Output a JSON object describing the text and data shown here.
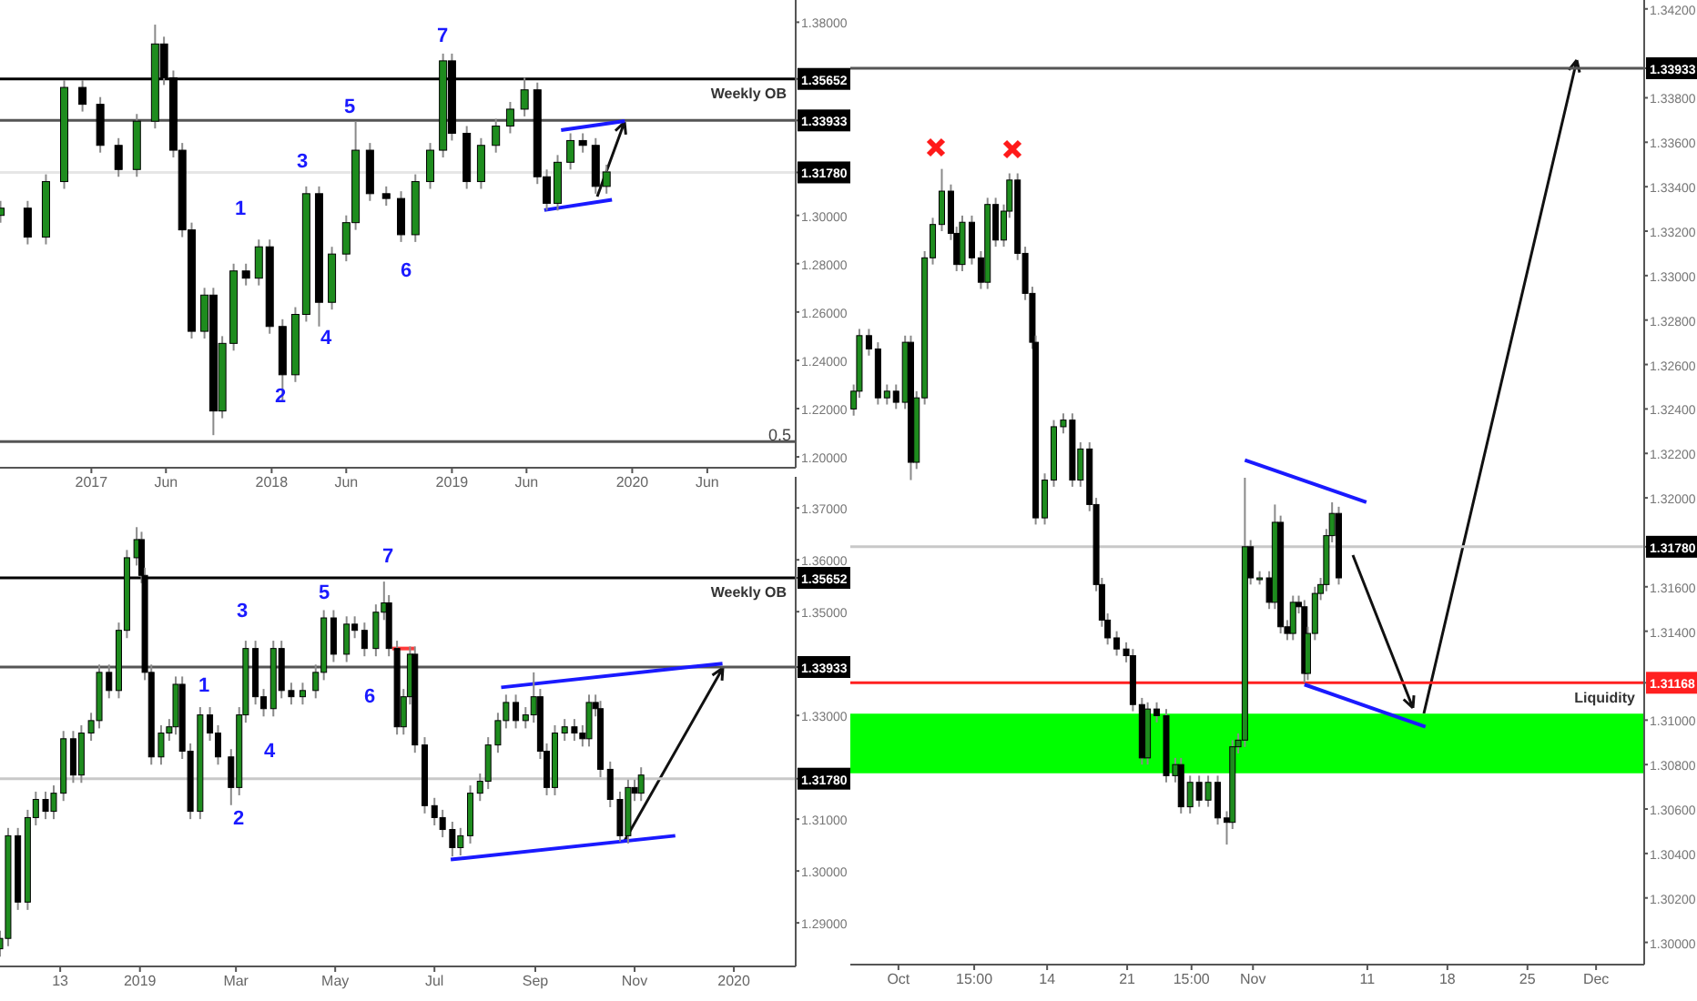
{
  "chart_data": [
    {
      "type": "candlestick",
      "x": [
        "2016-07-01",
        "2016-08-25",
        "2016-10-01",
        "2016-11-07",
        "2016-12-14",
        "2017-01-19",
        "2017-02-25",
        "2017-04-03",
        "2017-05-10",
        "2017-05-28",
        "2017-06-16",
        "2017-07-04",
        "2017-07-23",
        "2017-08-18",
        "2017-09-05",
        "2017-09-23",
        "2017-10-16",
        "2017-11-10",
        "2017-12-06",
        "2017-12-28",
        "2018-01-23",
        "2018-02-18",
        "2018-03-12",
        "2018-04-07",
        "2018-05-03",
        "2018-06-01",
        "2018-06-20",
        "2018-07-19",
        "2018-08-21",
        "2018-09-20",
        "2018-10-19",
        "2018-11-18",
        "2018-12-14",
        "2019-01-01",
        "2019-01-31",
        "2019-03-01",
        "2019-03-31",
        "2019-04-29",
        "2019-05-28",
        "2019-06-23",
        "2019-07-12",
        "2019-08-03",
        "2019-08-29",
        "2019-09-23",
        "2019-10-19",
        "2019-11-10"
      ],
      "ohlc": [
        [
          1.3,
          1.306,
          1.297,
          1.303
        ],
        [
          1.303,
          1.306,
          1.288,
          1.291
        ],
        [
          1.291,
          1.317,
          1.288,
          1.314
        ],
        [
          1.314,
          1.356,
          1.311,
          1.353
        ],
        [
          1.353,
          1.356,
          1.343,
          1.346
        ],
        [
          1.346,
          1.349,
          1.326,
          1.329
        ],
        [
          1.329,
          1.332,
          1.316,
          1.319
        ],
        [
          1.319,
          1.342,
          1.316,
          1.339
        ],
        [
          1.339,
          1.379,
          1.336,
          1.371
        ],
        [
          1.371,
          1.374,
          1.354,
          1.357
        ],
        [
          1.357,
          1.36,
          1.324,
          1.327
        ],
        [
          1.327,
          1.33,
          1.291,
          1.294
        ],
        [
          1.294,
          1.297,
          1.249,
          1.252
        ],
        [
          1.252,
          1.27,
          1.249,
          1.267
        ],
        [
          1.267,
          1.27,
          1.209,
          1.219
        ],
        [
          1.219,
          1.25,
          1.216,
          1.247
        ],
        [
          1.247,
          1.28,
          1.244,
          1.277
        ],
        [
          1.277,
          1.28,
          1.271,
          1.274
        ],
        [
          1.274,
          1.29,
          1.271,
          1.287
        ],
        [
          1.287,
          1.29,
          1.251,
          1.254
        ],
        [
          1.254,
          1.257,
          1.223,
          1.234
        ],
        [
          1.234,
          1.262,
          1.231,
          1.259
        ],
        [
          1.259,
          1.312,
          1.256,
          1.309
        ],
        [
          1.309,
          1.312,
          1.254,
          1.264
        ],
        [
          1.264,
          1.287,
          1.261,
          1.284
        ],
        [
          1.284,
          1.3,
          1.281,
          1.297
        ],
        [
          1.297,
          1.339,
          1.294,
          1.327
        ],
        [
          1.327,
          1.33,
          1.306,
          1.309
        ],
        [
          1.309,
          1.312,
          1.304,
          1.307
        ],
        [
          1.307,
          1.31,
          1.289,
          1.292
        ],
        [
          1.292,
          1.317,
          1.289,
          1.314
        ],
        [
          1.314,
          1.33,
          1.311,
          1.327
        ],
        [
          1.327,
          1.367,
          1.324,
          1.364
        ],
        [
          1.364,
          1.367,
          1.331,
          1.334
        ],
        [
          1.334,
          1.337,
          1.311,
          1.314
        ],
        [
          1.314,
          1.332,
          1.311,
          1.329
        ],
        [
          1.329,
          1.34,
          1.326,
          1.337
        ],
        [
          1.337,
          1.347,
          1.334,
          1.344
        ],
        [
          1.344,
          1.357,
          1.341,
          1.352
        ],
        [
          1.352,
          1.355,
          1.313,
          1.316
        ],
        [
          1.316,
          1.319,
          1.302,
          1.305
        ],
        [
          1.305,
          1.325,
          1.302,
          1.322
        ],
        [
          1.322,
          1.334,
          1.319,
          1.331
        ],
        [
          1.331,
          1.334,
          1.326,
          1.329
        ],
        [
          1.329,
          1.332,
          1.309,
          1.312
        ],
        [
          1.312,
          1.321,
          1.309,
          1.318
        ]
      ],
      "series": [
        {
          "type": "line",
          "color": "#1a1aff",
          "x": [
            "2019-08-10",
            "2019-12-17"
          ],
          "values": [
            1.3353,
            1.3391
          ]
        },
        {
          "type": "line",
          "color": "#1a1aff",
          "x": [
            "2019-07-07",
            "2019-11-21"
          ],
          "values": [
            1.3022,
            1.3065
          ]
        }
      ],
      "xlim": [
        "2016-06-30",
        "2020-11-27"
      ],
      "xticks": [
        {
          "value": "2017-01-01",
          "label": "2017"
        },
        {
          "value": "2017-06-01",
          "label": "Jun"
        },
        {
          "value": "2018-01-01",
          "label": "2018"
        },
        {
          "value": "2018-06-01",
          "label": "Jun"
        },
        {
          "value": "2019-01-01",
          "label": "2019"
        },
        {
          "value": "2019-06-01",
          "label": "Jun"
        },
        {
          "value": "2020-01-01",
          "label": "2020"
        },
        {
          "value": "2020-06-01",
          "label": "Jun"
        }
      ],
      "ylim": [
        1.1955,
        1.3892
      ],
      "yticks": [
        {
          "value": 1.38,
          "label": "1.38000"
        },
        {
          "value": 1.35652,
          "label": "1.35652"
        },
        {
          "value": 1.33933,
          "label": "1.33933"
        },
        {
          "value": 1.3178,
          "label": "1.31780"
        },
        {
          "value": 1.3,
          "label": "1.30000"
        },
        {
          "value": 1.28,
          "label": "1.28000"
        },
        {
          "value": 1.26,
          "label": "1.26000"
        },
        {
          "value": 1.24,
          "label": "1.24000"
        },
        {
          "value": 1.22,
          "label": "1.22000"
        },
        {
          "value": 1.2,
          "label": "1.20000"
        }
      ],
      "ref_lines": [
        {
          "axis": "y",
          "value": 1.35652,
          "label": "Weekly OB",
          "color": "#000000"
        },
        {
          "axis": "y",
          "value": 1.33933,
          "color": "#555555"
        },
        {
          "axis": "y",
          "value": 1.3178,
          "color": "#e6e6e6"
        },
        {
          "axis": "y",
          "value": 1.2063,
          "color": "#555555"
        }
      ],
      "annotations": [
        "1",
        "2",
        "3",
        "4",
        "5",
        "6",
        "7",
        "0.5"
      ]
    },
    {
      "type": "candlestick",
      "x": [
        "2018-10-07",
        "2018-10-12",
        "2018-10-18",
        "2018-10-24",
        "2018-10-29",
        "2018-11-04",
        "2018-11-09",
        "2018-11-15",
        "2018-11-21",
        "2018-11-26",
        "2018-12-02",
        "2018-12-07",
        "2018-12-13",
        "2018-12-19",
        "2018-12-24",
        "2018-12-30",
        "2019-01-02",
        "2019-01-04",
        "2019-01-08",
        "2019-01-14",
        "2019-01-19",
        "2019-01-23",
        "2019-01-27",
        "2019-02-01",
        "2019-02-07",
        "2019-02-13",
        "2019-02-18",
        "2019-02-26",
        "2019-03-03",
        "2019-03-07",
        "2019-03-13",
        "2019-03-18",
        "2019-03-24",
        "2019-03-29",
        "2019-04-04",
        "2019-04-11",
        "2019-04-19",
        "2019-04-24",
        "2019-04-30",
        "2019-05-08",
        "2019-05-13",
        "2019-05-19",
        "2019-05-26",
        "2019-05-31",
        "2019-06-03",
        "2019-06-08",
        "2019-06-12",
        "2019-06-16",
        "2019-06-19",
        "2019-06-25",
        "2019-07-01",
        "2019-07-06",
        "2019-07-12",
        "2019-07-17",
        "2019-07-23",
        "2019-07-29",
        "2019-08-03",
        "2019-08-09",
        "2019-08-14",
        "2019-08-20",
        "2019-08-26",
        "2019-08-31",
        "2019-09-04",
        "2019-09-08",
        "2019-09-13",
        "2019-09-19",
        "2019-09-25",
        "2019-09-30",
        "2019-10-04",
        "2019-10-08",
        "2019-10-11",
        "2019-10-17",
        "2019-10-23",
        "2019-10-28",
        "2019-11-01",
        "2019-11-05"
      ],
      "ohlc": [
        [
          1.285,
          1.2885,
          1.2835,
          1.287
        ],
        [
          1.287,
          1.3083,
          1.2855,
          1.3068
        ],
        [
          1.3068,
          1.3083,
          1.2925,
          1.294
        ],
        [
          1.294,
          1.3118,
          1.2925,
          1.3103
        ],
        [
          1.3103,
          1.3153,
          1.3088,
          1.3138
        ],
        [
          1.3138,
          1.3153,
          1.31,
          1.3115
        ],
        [
          1.3115,
          1.3165,
          1.31,
          1.315
        ],
        [
          1.315,
          1.327,
          1.3135,
          1.3255
        ],
        [
          1.3255,
          1.327,
          1.317,
          1.3185
        ],
        [
          1.3185,
          1.3281,
          1.317,
          1.3266
        ],
        [
          1.3266,
          1.3305,
          1.3251,
          1.329
        ],
        [
          1.329,
          1.3398,
          1.3275,
          1.3383
        ],
        [
          1.3383,
          1.3398,
          1.3333,
          1.3348
        ],
        [
          1.3348,
          1.3479,
          1.3333,
          1.3464
        ],
        [
          1.3464,
          1.3619,
          1.3449,
          1.3604
        ],
        [
          1.3604,
          1.3663,
          1.3589,
          1.3639
        ],
        [
          1.3639,
          1.3654,
          1.3555,
          1.357
        ],
        [
          1.357,
          1.3585,
          1.3368,
          1.3383
        ],
        [
          1.3383,
          1.3398,
          1.3205,
          1.322
        ],
        [
          1.322,
          1.3281,
          1.3205,
          1.3266
        ],
        [
          1.3266,
          1.3293,
          1.3251,
          1.3278
        ],
        [
          1.3278,
          1.3375,
          1.3263,
          1.336
        ],
        [
          1.336,
          1.3375,
          1.3216,
          1.3231
        ],
        [
          1.3231,
          1.3246,
          1.31,
          1.3115
        ],
        [
          1.3115,
          1.3316,
          1.31,
          1.3301
        ],
        [
          1.3301,
          1.3316,
          1.3251,
          1.3266
        ],
        [
          1.3266,
          1.3281,
          1.3205,
          1.322
        ],
        [
          1.322,
          1.3235,
          1.3127,
          1.3161
        ],
        [
          1.3161,
          1.3316,
          1.3146,
          1.3301
        ],
        [
          1.3301,
          1.3444,
          1.3286,
          1.3429
        ],
        [
          1.3429,
          1.3444,
          1.3321,
          1.3336
        ],
        [
          1.3336,
          1.3351,
          1.3298,
          1.3313
        ],
        [
          1.3313,
          1.3444,
          1.3298,
          1.3429
        ],
        [
          1.3429,
          1.3444,
          1.3333,
          1.3348
        ],
        [
          1.3348,
          1.3363,
          1.3321,
          1.3336
        ],
        [
          1.3336,
          1.3363,
          1.3321,
          1.3348
        ],
        [
          1.3348,
          1.3398,
          1.3333,
          1.3383
        ],
        [
          1.3383,
          1.3503,
          1.3368,
          1.3488
        ],
        [
          1.3488,
          1.3503,
          1.3403,
          1.3418
        ],
        [
          1.3418,
          1.3491,
          1.3403,
          1.3476
        ],
        [
          1.3476,
          1.3491,
          1.3449,
          1.3464
        ],
        [
          1.3464,
          1.3479,
          1.3414,
          1.3429
        ],
        [
          1.3429,
          1.3514,
          1.3414,
          1.3499
        ],
        [
          1.3499,
          1.3558,
          1.3484,
          1.3517
        ],
        [
          1.3517,
          1.3532,
          1.3414,
          1.3429
        ],
        [
          1.3429,
          1.3444,
          1.3263,
          1.3278
        ],
        [
          1.3278,
          1.3351,
          1.3263,
          1.3336
        ],
        [
          1.3336,
          1.3433,
          1.3321,
          1.3418
        ],
        [
          1.3418,
          1.3433,
          1.3228,
          1.3243
        ],
        [
          1.3243,
          1.3258,
          1.3111,
          1.3126
        ],
        [
          1.3126,
          1.3141,
          1.3088,
          1.3103
        ],
        [
          1.3103,
          1.3118,
          1.3065,
          1.308
        ],
        [
          1.308,
          1.3095,
          1.3028,
          1.3045
        ],
        [
          1.3045,
          1.3083,
          1.303,
          1.3068
        ],
        [
          1.3068,
          1.3165,
          1.3053,
          1.315
        ],
        [
          1.315,
          1.3188,
          1.3135,
          1.3173
        ],
        [
          1.3173,
          1.3258,
          1.3158,
          1.3243
        ],
        [
          1.3243,
          1.3305,
          1.3228,
          1.329
        ],
        [
          1.329,
          1.334,
          1.3275,
          1.3325
        ],
        [
          1.3325,
          1.334,
          1.3275,
          1.329
        ],
        [
          1.329,
          1.3316,
          1.3275,
          1.3301
        ],
        [
          1.3301,
          1.3383,
          1.3286,
          1.3336
        ],
        [
          1.3336,
          1.3351,
          1.3216,
          1.3231
        ],
        [
          1.3231,
          1.3246,
          1.3146,
          1.3161
        ],
        [
          1.3161,
          1.3281,
          1.3146,
          1.3266
        ],
        [
          1.3266,
          1.3293,
          1.3251,
          1.3278
        ],
        [
          1.3278,
          1.3293,
          1.3251,
          1.3266
        ],
        [
          1.3266,
          1.3281,
          1.324,
          1.3255
        ],
        [
          1.3255,
          1.334,
          1.324,
          1.3325
        ],
        [
          1.3325,
          1.334,
          1.3298,
          1.3313
        ],
        [
          1.3313,
          1.3328,
          1.3181,
          1.3196
        ],
        [
          1.3196,
          1.3211,
          1.3123,
          1.3138
        ],
        [
          1.3138,
          1.3153,
          1.3057,
          1.3068
        ],
        [
          1.3068,
          1.3176,
          1.3053,
          1.3161
        ],
        [
          1.3161,
          1.3176,
          1.3135,
          1.315
        ],
        [
          1.315,
          1.32,
          1.3135,
          1.3185
        ]
      ],
      "series": [
        {
          "type": "line",
          "color": "#1a1aff",
          "x": [
            "2019-08-11",
            "2019-12-25"
          ],
          "values": [
            1.3354,
            1.34
          ]
        },
        {
          "type": "line",
          "color": "#1a1aff",
          "x": [
            "2019-07-11",
            "2019-11-26"
          ],
          "values": [
            1.3022,
            1.3068
          ]
        },
        {
          "type": "line",
          "color": "#ff3b3b",
          "x": [
            "2019-06-05",
            "2019-06-19"
          ],
          "values": [
            1.3429,
            1.3429
          ]
        }
      ],
      "xlim": [
        "2018-10-07",
        "2020-02-08"
      ],
      "xticks": [
        {
          "value": "2018-11-13",
          "label": "13"
        },
        {
          "value": "2019-01-01",
          "label": "2019"
        },
        {
          "value": "2019-03-01",
          "label": "Mar"
        },
        {
          "value": "2019-05-01",
          "label": "May"
        },
        {
          "value": "2019-07-01",
          "label": "Jul"
        },
        {
          "value": "2019-09-01",
          "label": "Sep"
        },
        {
          "value": "2019-11-01",
          "label": "Nov"
        },
        {
          "value": "2020-01-01",
          "label": "2020"
        }
      ],
      "ylim": [
        1.2816,
        1.376
      ],
      "yticks": [
        {
          "value": 1.37,
          "label": "1.37000"
        },
        {
          "value": 1.36,
          "label": "1.36000"
        },
        {
          "value": 1.35652,
          "label": "1.35652"
        },
        {
          "value": 1.35,
          "label": "1.35000"
        },
        {
          "value": 1.33933,
          "label": "1.33933"
        },
        {
          "value": 1.33,
          "label": "1.33000"
        },
        {
          "value": 1.3178,
          "label": "1.31780"
        },
        {
          "value": 1.31,
          "label": "1.31000"
        },
        {
          "value": 1.3,
          "label": "1.30000"
        },
        {
          "value": 1.29,
          "label": "1.29000"
        }
      ],
      "ref_lines": [
        {
          "axis": "y",
          "value": 1.35652,
          "label": "Weekly OB",
          "color": "#000000"
        },
        {
          "axis": "y",
          "value": 1.33933,
          "color": "#555555"
        },
        {
          "axis": "y",
          "value": 1.3178,
          "color": "#c8c8c8"
        }
      ],
      "annotations": [
        "1",
        "2",
        "3",
        "4",
        "5",
        "6",
        "7"
      ]
    },
    {
      "type": "candlestick",
      "x": [
        "2019-09-27T02:00",
        "2019-09-27T14:00",
        "2019-09-28T10:00",
        "2019-09-29T05:00",
        "2019-09-30T00:00",
        "2019-09-30T19:00",
        "2019-10-01T14:00",
        "2019-10-02T02:00",
        "2019-10-02T14:00",
        "2019-10-03T07:00",
        "2019-10-04T00:00",
        "2019-10-04T19:00",
        "2019-10-05T14:00",
        "2019-10-06T02:00",
        "2019-10-06T14:00",
        "2019-10-07T10:00",
        "2019-10-08T05:00",
        "2019-10-08T19:00",
        "2019-10-09T12:00",
        "2019-10-10T05:00",
        "2019-10-10T17:00",
        "2019-10-11T10:00",
        "2019-10-12T02:00",
        "2019-10-12T17:00",
        "2019-10-13T00:00",
        "2019-10-13T19:00",
        "2019-10-14T14:00",
        "2019-10-15T10:00",
        "2019-10-16T05:00",
        "2019-10-16T22:00",
        "2019-10-17T17:00",
        "2019-10-18T07:00",
        "2019-10-18T19:00",
        "2019-10-19T07:00",
        "2019-10-20T02:00",
        "2019-10-20T22:00",
        "2019-10-21T12:00",
        "2019-10-22T07:00",
        "2019-10-22T19:00",
        "2019-10-23T14:00",
        "2019-10-24T10:00",
        "2019-10-25T05:00",
        "2019-10-25T17:00",
        "2019-10-26T12:00",
        "2019-10-27T07:00",
        "2019-10-28T02:00",
        "2019-10-28T22:00",
        "2019-10-29T17:00",
        "2019-10-30T05:00",
        "2019-10-30T17:00",
        "2019-10-31T07:00",
        "2019-10-31T19:00",
        "2019-11-01T14:00",
        "2019-11-02T10:00",
        "2019-11-02T22:00",
        "2019-11-03T10:00",
        "2019-11-04T00:00",
        "2019-11-04T12:00",
        "2019-11-05T00:00",
        "2019-11-05T12:00",
        "2019-11-05T19:00",
        "2019-11-06T10:00",
        "2019-11-06T22:00",
        "2019-11-07T10:00",
        "2019-11-07T22:00",
        "2019-11-08T12:00"
      ],
      "ohlc": [
        [
          1.324,
          1.3251,
          1.3237,
          1.3248
        ],
        [
          1.3248,
          1.3276,
          1.3245,
          1.3273
        ],
        [
          1.3273,
          1.3276,
          1.3264,
          1.3267
        ],
        [
          1.3267,
          1.327,
          1.3242,
          1.3245
        ],
        [
          1.3245,
          1.3251,
          1.3242,
          1.3248
        ],
        [
          1.3248,
          1.3251,
          1.324,
          1.3243
        ],
        [
          1.3243,
          1.3273,
          1.324,
          1.327
        ],
        [
          1.327,
          1.3273,
          1.3208,
          1.3216
        ],
        [
          1.3216,
          1.3248,
          1.3213,
          1.3245
        ],
        [
          1.3245,
          1.3311,
          1.3242,
          1.3308
        ],
        [
          1.3308,
          1.3326,
          1.3305,
          1.3323
        ],
        [
          1.3323,
          1.3348,
          1.332,
          1.3338
        ],
        [
          1.3338,
          1.3341,
          1.3316,
          1.3319
        ],
        [
          1.3319,
          1.3322,
          1.3302,
          1.3305
        ],
        [
          1.3305,
          1.3327,
          1.3302,
          1.3324
        ],
        [
          1.3324,
          1.3327,
          1.3305,
          1.3308
        ],
        [
          1.3308,
          1.3311,
          1.3294,
          1.3297
        ],
        [
          1.3297,
          1.3335,
          1.3294,
          1.3332
        ],
        [
          1.3332,
          1.3335,
          1.3313,
          1.3316
        ],
        [
          1.3316,
          1.3332,
          1.3313,
          1.3329
        ],
        [
          1.3329,
          1.3346,
          1.3326,
          1.3343
        ],
        [
          1.3343,
          1.3346,
          1.3307,
          1.331
        ],
        [
          1.331,
          1.3313,
          1.3289,
          1.3292
        ],
        [
          1.3292,
          1.3295,
          1.3267,
          1.327
        ],
        [
          1.327,
          1.3273,
          1.3188,
          1.3191
        ],
        [
          1.3191,
          1.3211,
          1.3188,
          1.3208
        ],
        [
          1.3208,
          1.3235,
          1.3205,
          1.3232
        ],
        [
          1.3232,
          1.3238,
          1.3229,
          1.3235
        ],
        [
          1.3235,
          1.3238,
          1.3205,
          1.3208
        ],
        [
          1.3208,
          1.3225,
          1.3205,
          1.3222
        ],
        [
          1.3222,
          1.3225,
          1.3194,
          1.3197
        ],
        [
          1.3197,
          1.32,
          1.3158,
          1.3161
        ],
        [
          1.3161,
          1.3164,
          1.3142,
          1.3145
        ],
        [
          1.3145,
          1.3148,
          1.3134,
          1.3137
        ],
        [
          1.3137,
          1.314,
          1.3129,
          1.3132
        ],
        [
          1.3132,
          1.3135,
          1.3126,
          1.3129
        ],
        [
          1.3129,
          1.3132,
          1.3104,
          1.3107
        ],
        [
          1.3107,
          1.311,
          1.308,
          1.3083
        ],
        [
          1.3083,
          1.3108,
          1.308,
          1.3105
        ],
        [
          1.3105,
          1.3108,
          1.3099,
          1.3102
        ],
        [
          1.3102,
          1.3105,
          1.3072,
          1.3075
        ],
        [
          1.3075,
          1.3083,
          1.3072,
          1.308
        ],
        [
          1.308,
          1.3083,
          1.3058,
          1.3061
        ],
        [
          1.3061,
          1.3075,
          1.3058,
          1.3072
        ],
        [
          1.3072,
          1.3075,
          1.3061,
          1.3064
        ],
        [
          1.3064,
          1.3075,
          1.3061,
          1.3072
        ],
        [
          1.3072,
          1.3075,
          1.3053,
          1.3056
        ],
        [
          1.3056,
          1.3059,
          1.3044,
          1.3054
        ],
        [
          1.3054,
          1.3091,
          1.3051,
          1.3088
        ],
        [
          1.3088,
          1.3094,
          1.3085,
          1.3091
        ],
        [
          1.3091,
          1.3209,
          1.3088,
          1.3178
        ],
        [
          1.3178,
          1.3181,
          1.3161,
          1.3164
        ],
        [
          1.3164,
          1.3167,
          1.3161,
          1.3164
        ],
        [
          1.3164,
          1.3167,
          1.315,
          1.3153
        ],
        [
          1.3153,
          1.3197,
          1.315,
          1.3189
        ],
        [
          1.3189,
          1.3192,
          1.3139,
          1.3142
        ],
        [
          1.3142,
          1.3145,
          1.3136,
          1.3139
        ],
        [
          1.3139,
          1.3156,
          1.3136,
          1.3153
        ],
        [
          1.3153,
          1.3156,
          1.3148,
          1.3151
        ],
        [
          1.3151,
          1.3154,
          1.3117,
          1.3121
        ],
        [
          1.3121,
          1.3142,
          1.3118,
          1.3139
        ],
        [
          1.3139,
          1.316,
          1.3136,
          1.3157
        ],
        [
          1.3157,
          1.3164,
          1.3154,
          1.3161
        ],
        [
          1.3161,
          1.3186,
          1.3158,
          1.3183
        ],
        [
          1.3183,
          1.3198,
          1.318,
          1.3193
        ],
        [
          1.3193,
          1.3196,
          1.3161,
          1.3164
        ]
      ],
      "series": [
        {
          "type": "line",
          "color": "#1a1aff",
          "x": [
            "2019-10-31T07:00",
            "2019-11-10T22:00"
          ],
          "values": [
            1.3217,
            1.3198
          ]
        },
        {
          "type": "line",
          "color": "#1a1aff",
          "x": [
            "2019-11-05T12:00",
            "2019-11-16T02:00"
          ],
          "values": [
            1.3116,
            1.3097
          ]
        }
      ],
      "xlim": [
        "2019-09-26T19:00",
        "2019-12-05T05:00"
      ],
      "xticks": [
        {
          "value": "2019-10-01",
          "label": "Oct"
        },
        {
          "value": "2019-10-07T15:00",
          "label": "15:00"
        },
        {
          "value": "2019-10-14",
          "label": "14"
        },
        {
          "value": "2019-10-21",
          "label": "21"
        },
        {
          "value": "2019-10-26T15:00",
          "label": "15:00"
        },
        {
          "value": "2019-11-01",
          "label": "Nov"
        },
        {
          "value": "2019-11-11",
          "label": "11"
        },
        {
          "value": "2019-11-18",
          "label": "18"
        },
        {
          "value": "2019-11-25",
          "label": "25"
        },
        {
          "value": "2019-12-01",
          "label": "Dec"
        }
      ],
      "ylim": [
        1.299,
        1.3424
      ],
      "yticks": [
        {
          "value": 1.342,
          "label": "1.34200"
        },
        {
          "value": 1.33933,
          "label": "1.33933"
        },
        {
          "value": 1.338,
          "label": "1.33800"
        },
        {
          "value": 1.336,
          "label": "1.33600"
        },
        {
          "value": 1.334,
          "label": "1.33400"
        },
        {
          "value": 1.332,
          "label": "1.33200"
        },
        {
          "value": 1.33,
          "label": "1.33000"
        },
        {
          "value": 1.328,
          "label": "1.32800"
        },
        {
          "value": 1.326,
          "label": "1.32600"
        },
        {
          "value": 1.324,
          "label": "1.32400"
        },
        {
          "value": 1.322,
          "label": "1.32200"
        },
        {
          "value": 1.32,
          "label": "1.32000"
        },
        {
          "value": 1.3178,
          "label": "1.31780"
        },
        {
          "value": 1.316,
          "label": "1.31600"
        },
        {
          "value": 1.314,
          "label": "1.31400"
        },
        {
          "value": 1.31168,
          "label": "1.31168"
        },
        {
          "value": 1.31,
          "label": "1.31000"
        },
        {
          "value": 1.308,
          "label": "1.30800"
        },
        {
          "value": 1.306,
          "label": "1.30600"
        },
        {
          "value": 1.304,
          "label": "1.30400"
        },
        {
          "value": 1.302,
          "label": "1.30200"
        },
        {
          "value": 1.3,
          "label": "1.30000"
        }
      ],
      "ref_lines": [
        {
          "axis": "y",
          "value": 1.33933,
          "color": "#555555"
        },
        {
          "axis": "y",
          "value": 1.3178,
          "color": "#c8c8c8"
        },
        {
          "axis": "y",
          "value": 1.31168,
          "label": "Liquidity",
          "color": "#ff2020"
        }
      ],
      "bands": [
        {
          "axis": "y",
          "from": 1.30761,
          "to": 1.31029,
          "color": "#00ff00"
        }
      ]
    }
  ]
}
